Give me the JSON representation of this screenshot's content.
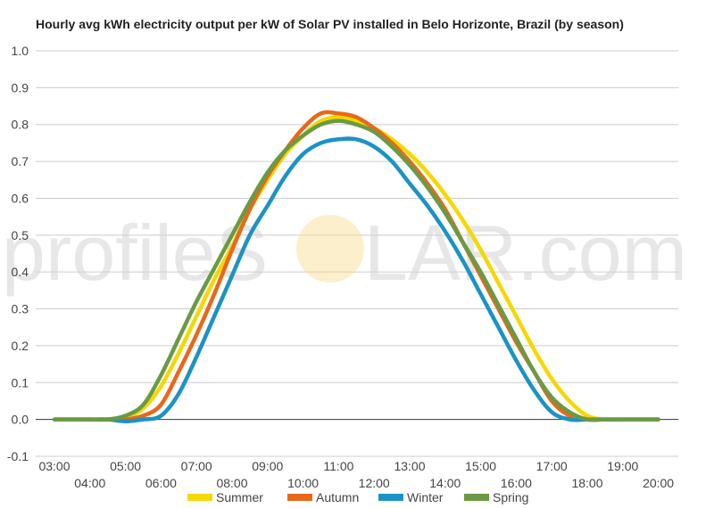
{
  "watermark": {
    "left": "profileS",
    "right": "LAR.com",
    "sun_color": "#f7dd8c"
  },
  "chart_data": {
    "type": "line",
    "title": "Hourly avg kWh electricity output per kW of Solar PV installed in Belo Horizonte, Brazil (by season)",
    "xlabel": "",
    "ylabel": "",
    "ylim": [
      -0.1,
      1.0
    ],
    "y_ticks": [
      "-0.1",
      "0.0",
      "0.1",
      "0.2",
      "0.3",
      "0.4",
      "0.5",
      "0.6",
      "0.7",
      "0.8",
      "0.9",
      "1.0"
    ],
    "x_ticks": [
      "03:00",
      "04:00",
      "05:00",
      "06:00",
      "07:00",
      "08:00",
      "09:00",
      "10:00",
      "11:00",
      "12:00",
      "13:00",
      "14:00",
      "15:00",
      "16:00",
      "17:00",
      "18:00",
      "19:00",
      "20:00"
    ],
    "x": [
      "03:00",
      "03:30",
      "04:00",
      "04:30",
      "05:00",
      "05:30",
      "06:00",
      "06:30",
      "07:00",
      "07:30",
      "08:00",
      "08:30",
      "09:00",
      "09:30",
      "10:00",
      "10:30",
      "11:00",
      "11:30",
      "12:00",
      "12:30",
      "13:00",
      "13:30",
      "14:00",
      "14:30",
      "15:00",
      "15:30",
      "16:00",
      "16:30",
      "17:00",
      "17:30",
      "18:00",
      "18:30",
      "19:00",
      "19:30",
      "20:00"
    ],
    "grid": true,
    "legend_position": "bottom",
    "series": [
      {
        "name": "Summer",
        "color": "#f5d800",
        "values": [
          0.0,
          0.0,
          0.0,
          0.0,
          0.004,
          0.03,
          0.09,
          0.18,
          0.28,
          0.38,
          0.47,
          0.57,
          0.65,
          0.72,
          0.77,
          0.81,
          0.82,
          0.81,
          0.79,
          0.76,
          0.72,
          0.67,
          0.61,
          0.54,
          0.46,
          0.37,
          0.28,
          0.19,
          0.11,
          0.05,
          0.01,
          0.0,
          0.0,
          0.0,
          0.0
        ]
      },
      {
        "name": "Autumn",
        "color": "#e8681a",
        "values": [
          0.0,
          0.0,
          0.0,
          0.0,
          0.0,
          0.01,
          0.04,
          0.13,
          0.23,
          0.34,
          0.46,
          0.57,
          0.66,
          0.73,
          0.79,
          0.83,
          0.83,
          0.82,
          0.79,
          0.75,
          0.7,
          0.64,
          0.57,
          0.48,
          0.39,
          0.3,
          0.21,
          0.13,
          0.05,
          0.01,
          0.0,
          0.0,
          0.0,
          0.0,
          0.0
        ]
      },
      {
        "name": "Winter",
        "color": "#1b93c4",
        "values": [
          0.0,
          0.0,
          0.0,
          0.0,
          -0.005,
          0.0,
          0.01,
          0.07,
          0.17,
          0.28,
          0.39,
          0.5,
          0.58,
          0.66,
          0.72,
          0.75,
          0.76,
          0.76,
          0.74,
          0.7,
          0.64,
          0.58,
          0.51,
          0.43,
          0.34,
          0.25,
          0.16,
          0.08,
          0.02,
          0.0,
          0.0,
          0.0,
          0.0,
          0.0,
          0.0
        ]
      },
      {
        "name": "Spring",
        "color": "#6a9a44",
        "values": [
          0.0,
          0.0,
          0.0,
          0.0,
          0.01,
          0.04,
          0.12,
          0.22,
          0.32,
          0.41,
          0.5,
          0.59,
          0.67,
          0.73,
          0.77,
          0.8,
          0.81,
          0.8,
          0.78,
          0.74,
          0.69,
          0.63,
          0.56,
          0.48,
          0.4,
          0.31,
          0.22,
          0.13,
          0.06,
          0.02,
          0.0,
          0.0,
          0.0,
          0.0,
          0.0
        ]
      }
    ]
  }
}
